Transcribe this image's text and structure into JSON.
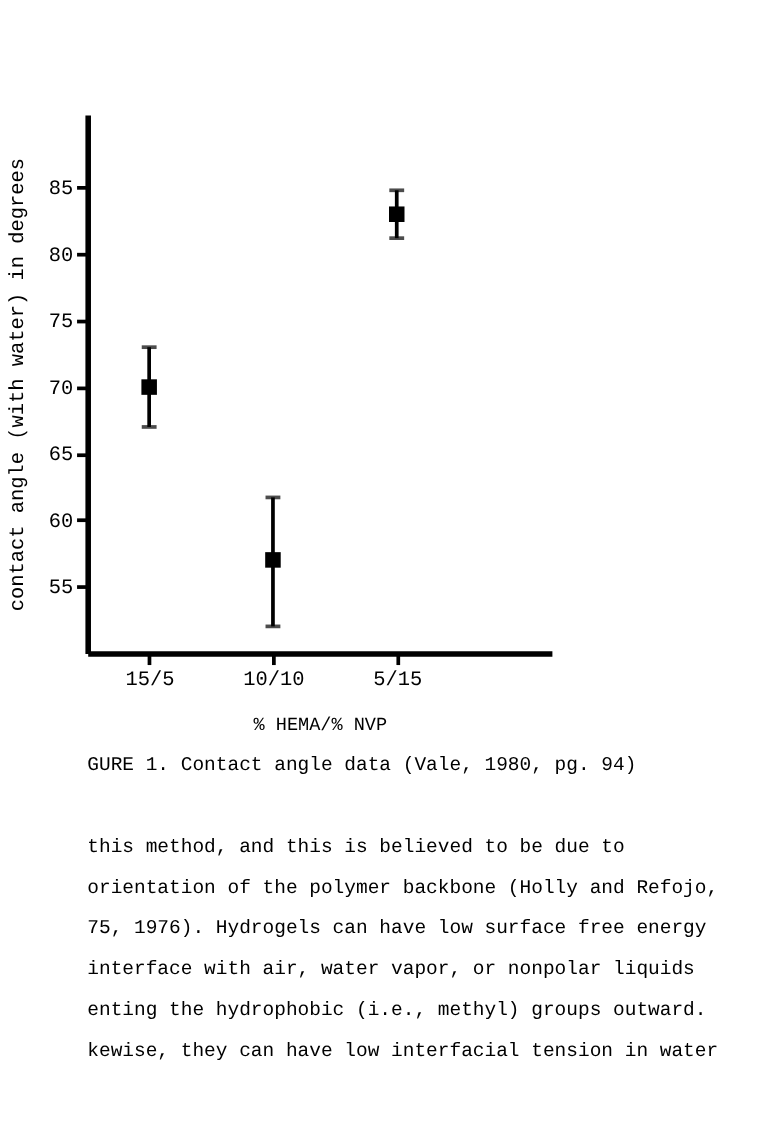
{
  "chart_data": {
    "type": "scatter",
    "xlabel": "% HEMA/% NVP",
    "ylabel": "contact angle (with water) in degrees",
    "categories": [
      "15/5",
      "10/10",
      "5/15"
    ],
    "values": [
      70,
      57,
      83
    ],
    "errors": [
      [
        67,
        73
      ],
      [
        52,
        61.7
      ],
      [
        81.2,
        84.8
      ]
    ],
    "color": "#000000",
    "marker": "square",
    "grid": false,
    "ylim": [
      50,
      90.5
    ],
    "yticks": [
      55,
      60,
      65,
      70,
      75,
      80,
      85
    ],
    "annotations": [
      "GURE 1.  Contact angle data (Vale, 1980,  pg. 94)",
      "this method, and this is believed to be due to",
      "orientation of the polymer backbone (Holly and Refojo,",
      "75, 1976).  Hydrogels can have low surface free energy",
      "interface with air, water vapor, or nonpolar liquids",
      "enting the hydrophobic (i.e., methyl) groups outward.",
      "kewise, they can have low interfacial tension in water"
    ]
  }
}
